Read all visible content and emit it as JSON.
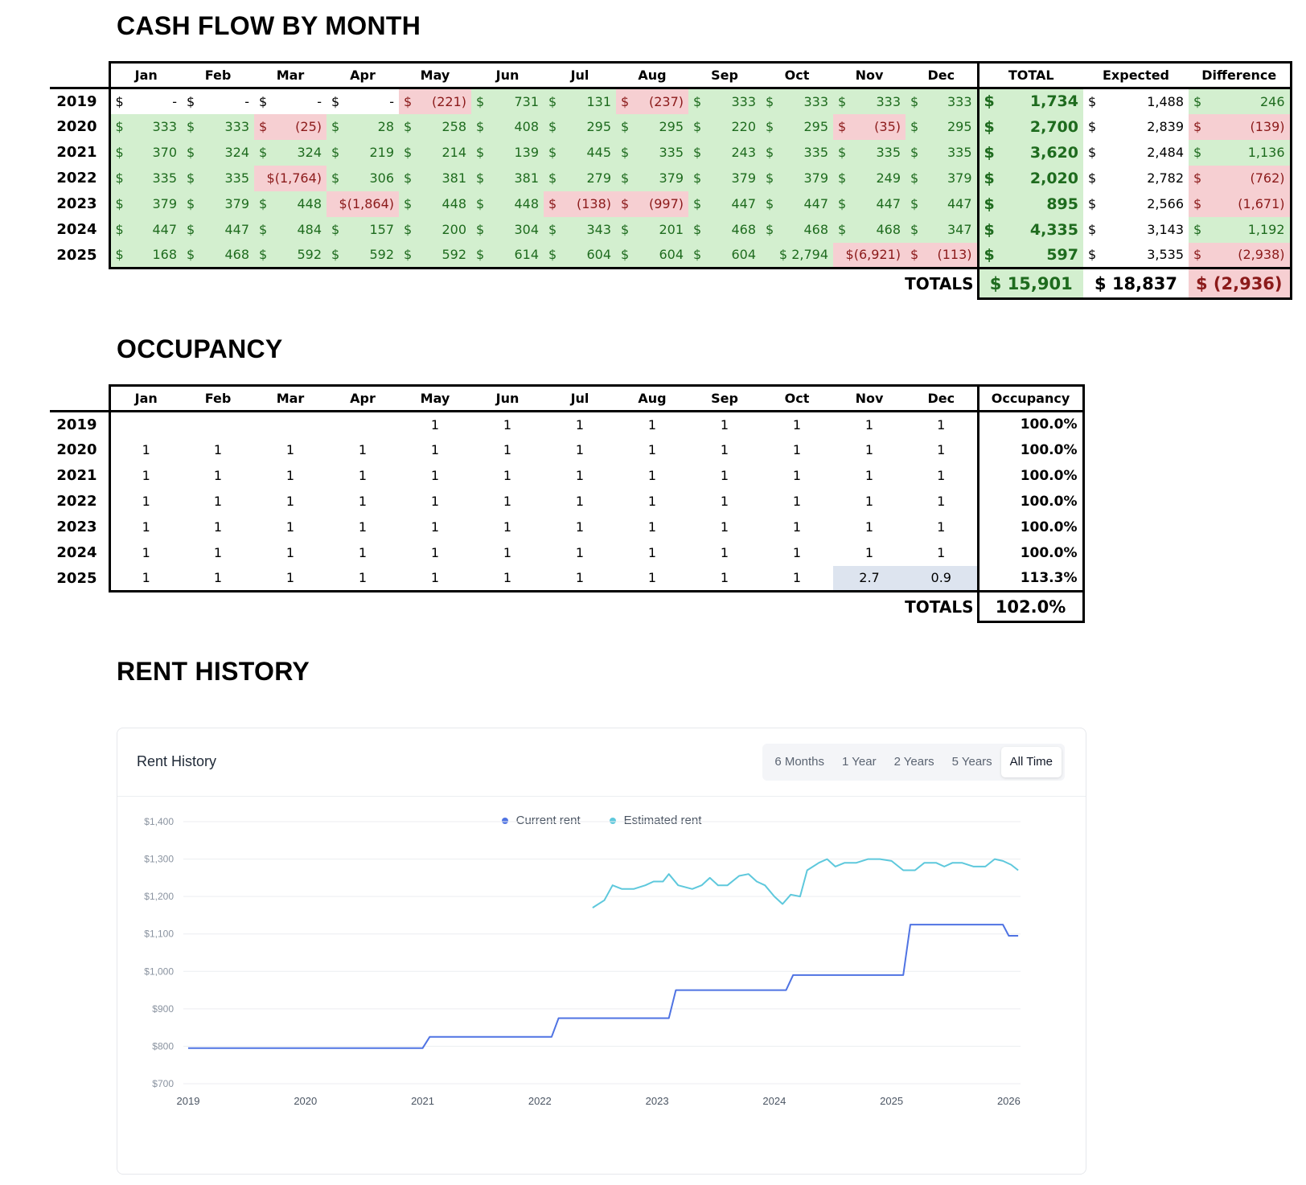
{
  "cashflow": {
    "title": "CASH FLOW BY MONTH",
    "months": [
      "Jan",
      "Feb",
      "Mar",
      "Apr",
      "May",
      "Jun",
      "Jul",
      "Aug",
      "Sep",
      "Oct",
      "Nov",
      "Dec"
    ],
    "summary_headers": [
      "TOTAL",
      "Expected",
      "Difference"
    ],
    "rows": [
      {
        "year": "2019",
        "cells": [
          [
            "-",
            "blank"
          ],
          [
            "-",
            "blank"
          ],
          [
            "-",
            "blank"
          ],
          [
            "-",
            "blank"
          ],
          [
            "(221)",
            "neg"
          ],
          [
            "731",
            "pos"
          ],
          [
            "131",
            "pos"
          ],
          [
            "(237)",
            "neg"
          ],
          [
            "333",
            "pos"
          ],
          [
            "333",
            "pos"
          ],
          [
            "333",
            "pos"
          ],
          [
            "333",
            "pos"
          ]
        ],
        "total": "1,734",
        "expected": "1,488",
        "difference": [
          "246",
          "pos"
        ]
      },
      {
        "year": "2020",
        "cells": [
          [
            "333",
            "pos"
          ],
          [
            "333",
            "pos"
          ],
          [
            "(25)",
            "neg"
          ],
          [
            "28",
            "pos"
          ],
          [
            "258",
            "pos"
          ],
          [
            "408",
            "pos"
          ],
          [
            "295",
            "pos"
          ],
          [
            "295",
            "pos"
          ],
          [
            "220",
            "pos"
          ],
          [
            "295",
            "pos"
          ],
          [
            "(35)",
            "neg"
          ],
          [
            "295",
            "pos"
          ]
        ],
        "total": "2,700",
        "expected": "2,839",
        "difference": [
          "(139)",
          "neg"
        ]
      },
      {
        "year": "2021",
        "cells": [
          [
            "370",
            "pos"
          ],
          [
            "324",
            "pos"
          ],
          [
            "324",
            "pos"
          ],
          [
            "219",
            "pos"
          ],
          [
            "214",
            "pos"
          ],
          [
            "139",
            "pos"
          ],
          [
            "445",
            "pos"
          ],
          [
            "335",
            "pos"
          ],
          [
            "243",
            "pos"
          ],
          [
            "335",
            "pos"
          ],
          [
            "335",
            "pos"
          ],
          [
            "335",
            "pos"
          ]
        ],
        "total": "3,620",
        "expected": "2,484",
        "difference": [
          "1,136",
          "pos"
        ]
      },
      {
        "year": "2022",
        "cells": [
          [
            "335",
            "pos"
          ],
          [
            "335",
            "pos"
          ],
          [
            "$(1,764)",
            "neg"
          ],
          [
            "306",
            "pos"
          ],
          [
            "381",
            "pos"
          ],
          [
            "381",
            "pos"
          ],
          [
            "279",
            "pos"
          ],
          [
            "379",
            "pos"
          ],
          [
            "379",
            "pos"
          ],
          [
            "379",
            "pos"
          ],
          [
            "249",
            "pos"
          ],
          [
            "379",
            "pos"
          ]
        ],
        "total": "2,020",
        "expected": "2,782",
        "difference": [
          "(762)",
          "neg"
        ]
      },
      {
        "year": "2023",
        "cells": [
          [
            "379",
            "pos"
          ],
          [
            "379",
            "pos"
          ],
          [
            "448",
            "pos"
          ],
          [
            "$(1,864)",
            "neg"
          ],
          [
            "448",
            "pos"
          ],
          [
            "448",
            "pos"
          ],
          [
            "(138)",
            "neg"
          ],
          [
            "(997)",
            "neg"
          ],
          [
            "447",
            "pos"
          ],
          [
            "447",
            "pos"
          ],
          [
            "447",
            "pos"
          ],
          [
            "447",
            "pos"
          ]
        ],
        "total": "895",
        "expected": "2,566",
        "difference": [
          "(1,671)",
          "neg"
        ]
      },
      {
        "year": "2024",
        "cells": [
          [
            "447",
            "pos"
          ],
          [
            "447",
            "pos"
          ],
          [
            "484",
            "pos"
          ],
          [
            "157",
            "pos"
          ],
          [
            "200",
            "pos"
          ],
          [
            "304",
            "pos"
          ],
          [
            "343",
            "pos"
          ],
          [
            "201",
            "pos"
          ],
          [
            "468",
            "pos"
          ],
          [
            "468",
            "pos"
          ],
          [
            "468",
            "pos"
          ],
          [
            "347",
            "pos"
          ]
        ],
        "total": "4,335",
        "expected": "3,143",
        "difference": [
          "1,192",
          "pos"
        ]
      },
      {
        "year": "2025",
        "cells": [
          [
            "168",
            "pos"
          ],
          [
            "468",
            "pos"
          ],
          [
            "592",
            "pos"
          ],
          [
            "592",
            "pos"
          ],
          [
            "592",
            "pos"
          ],
          [
            "614",
            "pos"
          ],
          [
            "604",
            "pos"
          ],
          [
            "604",
            "pos"
          ],
          [
            "604",
            "pos"
          ],
          [
            "$ 2,794",
            "pos"
          ],
          [
            "$(6,921)",
            "neg"
          ],
          [
            "(113)",
            "neg"
          ]
        ],
        "total": "597",
        "expected": "3,535",
        "difference": [
          "(2,938)",
          "neg"
        ]
      }
    ],
    "totals_label": "TOTALS",
    "totals": {
      "total": "$ 15,901",
      "expected": "$ 18,837",
      "difference": "$ (2,936)"
    }
  },
  "occupancy": {
    "title": "OCCUPANCY",
    "months": [
      "Jan",
      "Feb",
      "Mar",
      "Apr",
      "May",
      "Jun",
      "Jul",
      "Aug",
      "Sep",
      "Oct",
      "Nov",
      "Dec"
    ],
    "pct_header": "Occupancy",
    "rows": [
      {
        "year": "2019",
        "cells": [
          "",
          "",
          "",
          "",
          "1",
          "1",
          "1",
          "1",
          "1",
          "1",
          "1",
          "1"
        ],
        "pct": "100.0%"
      },
      {
        "year": "2020",
        "cells": [
          "1",
          "1",
          "1",
          "1",
          "1",
          "1",
          "1",
          "1",
          "1",
          "1",
          "1",
          "1"
        ],
        "pct": "100.0%"
      },
      {
        "year": "2021",
        "cells": [
          "1",
          "1",
          "1",
          "1",
          "1",
          "1",
          "1",
          "1",
          "1",
          "1",
          "1",
          "1"
        ],
        "pct": "100.0%"
      },
      {
        "year": "2022",
        "cells": [
          "1",
          "1",
          "1",
          "1",
          "1",
          "1",
          "1",
          "1",
          "1",
          "1",
          "1",
          "1"
        ],
        "pct": "100.0%"
      },
      {
        "year": "2023",
        "cells": [
          "1",
          "1",
          "1",
          "1",
          "1",
          "1",
          "1",
          "1",
          "1",
          "1",
          "1",
          "1"
        ],
        "pct": "100.0%"
      },
      {
        "year": "2024",
        "cells": [
          "1",
          "1",
          "1",
          "1",
          "1",
          "1",
          "1",
          "1",
          "1",
          "1",
          "1",
          "1"
        ],
        "pct": "100.0%"
      },
      {
        "year": "2025",
        "cells": [
          "1",
          "1",
          "1",
          "1",
          "1",
          "1",
          "1",
          "1",
          "1",
          "1",
          "2.7",
          "0.9"
        ],
        "pct": "113.3%"
      }
    ],
    "highlight_cells": [
      [
        6,
        10
      ],
      [
        6,
        11
      ]
    ],
    "totals_label": "TOTALS",
    "totals_pct": "102.0%"
  },
  "rent_history": {
    "section_title": "RENT HISTORY",
    "panel_title": "Rent History",
    "ranges": [
      "6 Months",
      "1 Year",
      "2 Years",
      "5 Years",
      "All Time"
    ],
    "active_range": "All Time",
    "legend": [
      {
        "label": "Current rent",
        "color": "#4f73e3"
      },
      {
        "label": "Estimated rent",
        "color": "#5ec8dc"
      }
    ]
  },
  "chart_data": {
    "type": "line",
    "title": "Rent History",
    "xlabel": "",
    "ylabel": "",
    "x_ticks": [
      "2019",
      "2020",
      "2021",
      "2022",
      "2023",
      "2024",
      "2025",
      "2026"
    ],
    "y_ticks": [
      "$700",
      "$800",
      "$900",
      "$1,000",
      "$1,100",
      "$1,200",
      "$1,300",
      "$1,400"
    ],
    "xlim": [
      2019.0,
      2026.1
    ],
    "ylim": [
      700,
      1400
    ],
    "grid": true,
    "legend_position": "top-center",
    "series": [
      {
        "name": "Current rent",
        "color": "#4f73e3",
        "points": [
          [
            2019.0,
            795
          ],
          [
            2020.0,
            795
          ],
          [
            2021.0,
            795
          ],
          [
            2021.0,
            795
          ],
          [
            2021.06,
            825
          ],
          [
            2022.0,
            825
          ],
          [
            2022.1,
            825
          ],
          [
            2022.16,
            875
          ],
          [
            2023.0,
            875
          ],
          [
            2023.1,
            875
          ],
          [
            2023.16,
            950
          ],
          [
            2024.0,
            950
          ],
          [
            2024.1,
            950
          ],
          [
            2024.16,
            990
          ],
          [
            2025.0,
            990
          ],
          [
            2025.1,
            990
          ],
          [
            2025.16,
            1125
          ],
          [
            2025.95,
            1125
          ],
          [
            2026.0,
            1095
          ],
          [
            2026.08,
            1095
          ]
        ]
      },
      {
        "name": "Estimated rent",
        "color": "#5ec8dc",
        "points": [
          [
            2022.45,
            1170
          ],
          [
            2022.55,
            1190
          ],
          [
            2022.62,
            1230
          ],
          [
            2022.7,
            1220
          ],
          [
            2022.8,
            1220
          ],
          [
            2022.9,
            1230
          ],
          [
            2022.97,
            1240
          ],
          [
            2023.05,
            1240
          ],
          [
            2023.1,
            1260
          ],
          [
            2023.18,
            1230
          ],
          [
            2023.3,
            1220
          ],
          [
            2023.38,
            1230
          ],
          [
            2023.45,
            1250
          ],
          [
            2023.52,
            1230
          ],
          [
            2023.6,
            1230
          ],
          [
            2023.7,
            1255
          ],
          [
            2023.78,
            1260
          ],
          [
            2023.85,
            1240
          ],
          [
            2023.92,
            1230
          ],
          [
            2024.0,
            1200
          ],
          [
            2024.07,
            1180
          ],
          [
            2024.14,
            1205
          ],
          [
            2024.22,
            1200
          ],
          [
            2024.28,
            1270
          ],
          [
            2024.38,
            1290
          ],
          [
            2024.45,
            1300
          ],
          [
            2024.52,
            1280
          ],
          [
            2024.6,
            1290
          ],
          [
            2024.7,
            1290
          ],
          [
            2024.8,
            1300
          ],
          [
            2024.9,
            1300
          ],
          [
            2025.0,
            1295
          ],
          [
            2025.1,
            1270
          ],
          [
            2025.2,
            1270
          ],
          [
            2025.28,
            1290
          ],
          [
            2025.38,
            1290
          ],
          [
            2025.45,
            1280
          ],
          [
            2025.52,
            1290
          ],
          [
            2025.6,
            1290
          ],
          [
            2025.7,
            1280
          ],
          [
            2025.8,
            1280
          ],
          [
            2025.88,
            1300
          ],
          [
            2025.95,
            1295
          ],
          [
            2026.02,
            1285
          ],
          [
            2026.08,
            1270
          ]
        ]
      }
    ]
  }
}
